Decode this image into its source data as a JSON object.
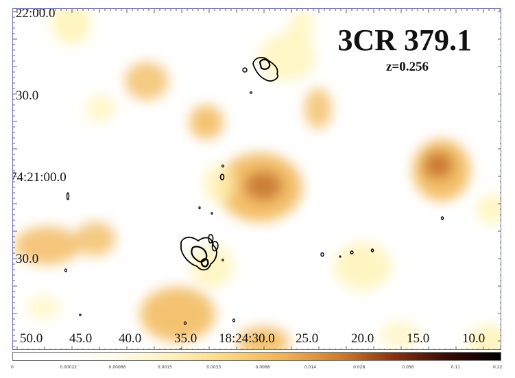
{
  "title": "3CR 379.1",
  "redshift_label": "z=0.256",
  "dec_labels": [
    "22:00.0",
    "30.0",
    "74:21:00.0",
    "30.0"
  ],
  "ra_labels": [
    "50.0",
    "45.0",
    "40.0",
    "35.0",
    "18:24:30.0",
    "25.0",
    "20.0",
    "15.0",
    "10.0"
  ],
  "colorbar": {
    "ticks": [
      "0",
      "0.00022",
      "0.00066",
      "0.0015",
      "0.0033",
      "0.0068",
      "0.014",
      "0.028",
      "0.056",
      "0.11",
      "0.22"
    ],
    "colors": [
      "#ffffff",
      "#ffffff",
      "#fffbe8",
      "#fff0b8",
      "#fdd77f",
      "#f0b050",
      "#d07c2c",
      "#8a3210",
      "#3a0a04",
      "#000000"
    ]
  },
  "image_colors": {
    "low": "#fff3b3",
    "mid": "#f2b85a",
    "high": "#bf6a25",
    "contour": "#000000",
    "frame": "#6f73b8"
  }
}
